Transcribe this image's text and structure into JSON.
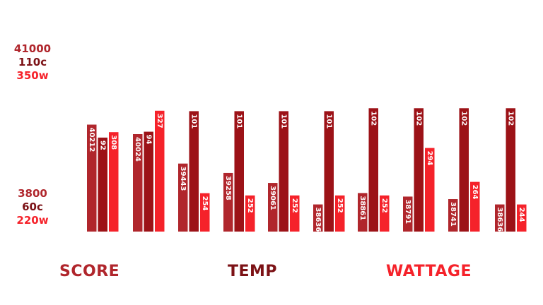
{
  "colors": {
    "score": "#b0262c",
    "temp": "#9c1217",
    "watt": "#f5222a",
    "score_text": "#b0262c",
    "temp_text": "#7c1216",
    "watt_text": "#f5222a"
  },
  "axes": {
    "score": {
      "top_label": "41000",
      "bottom_label": "3800"
    },
    "temp": {
      "top_label": "110c",
      "bottom_label": "60c"
    },
    "watt": {
      "top_label": "350w",
      "bottom_label": "220w"
    }
  },
  "legend": {
    "score": "SCORE",
    "temp": "TEMP",
    "watt": "WATTAGE"
  },
  "chart_data": {
    "type": "bar",
    "categories": [
      "",
      "",
      "",
      "",
      "",
      "",
      "",
      "",
      "",
      ""
    ],
    "series": [
      {
        "name": "SCORE",
        "values": [
          40212,
          40024,
          39443,
          39258,
          39061,
          38636,
          38861,
          38791,
          38741,
          38636
        ]
      },
      {
        "name": "TEMP",
        "values": [
          92,
          94,
          101,
          101,
          101,
          101,
          102,
          102,
          102,
          102
        ]
      },
      {
        "name": "WATTAGE",
        "values": [
          308,
          327,
          254,
          252,
          252,
          252,
          252,
          294,
          264,
          244
        ]
      }
    ],
    "data_labels": {
      "SCORE": [
        "40212",
        "40024",
        "39443",
        "39258",
        "39061",
        "38636",
        "38861",
        "38791",
        "38741",
        "38636"
      ],
      "TEMP": [
        "92",
        "94",
        "101",
        "101",
        "101",
        "101",
        "102",
        "102",
        "102",
        "102"
      ],
      "WATTAGE": [
        "308",
        "327",
        "254",
        "252",
        "252",
        "252",
        "252",
        "294",
        "264",
        "244"
      ]
    },
    "ylim": {
      "SCORE": [
        38100,
        41000
      ],
      "TEMP": [
        60,
        110
      ],
      "WATTAGE": [
        220,
        350
      ]
    },
    "grid": false,
    "legend_position": "bottom"
  }
}
